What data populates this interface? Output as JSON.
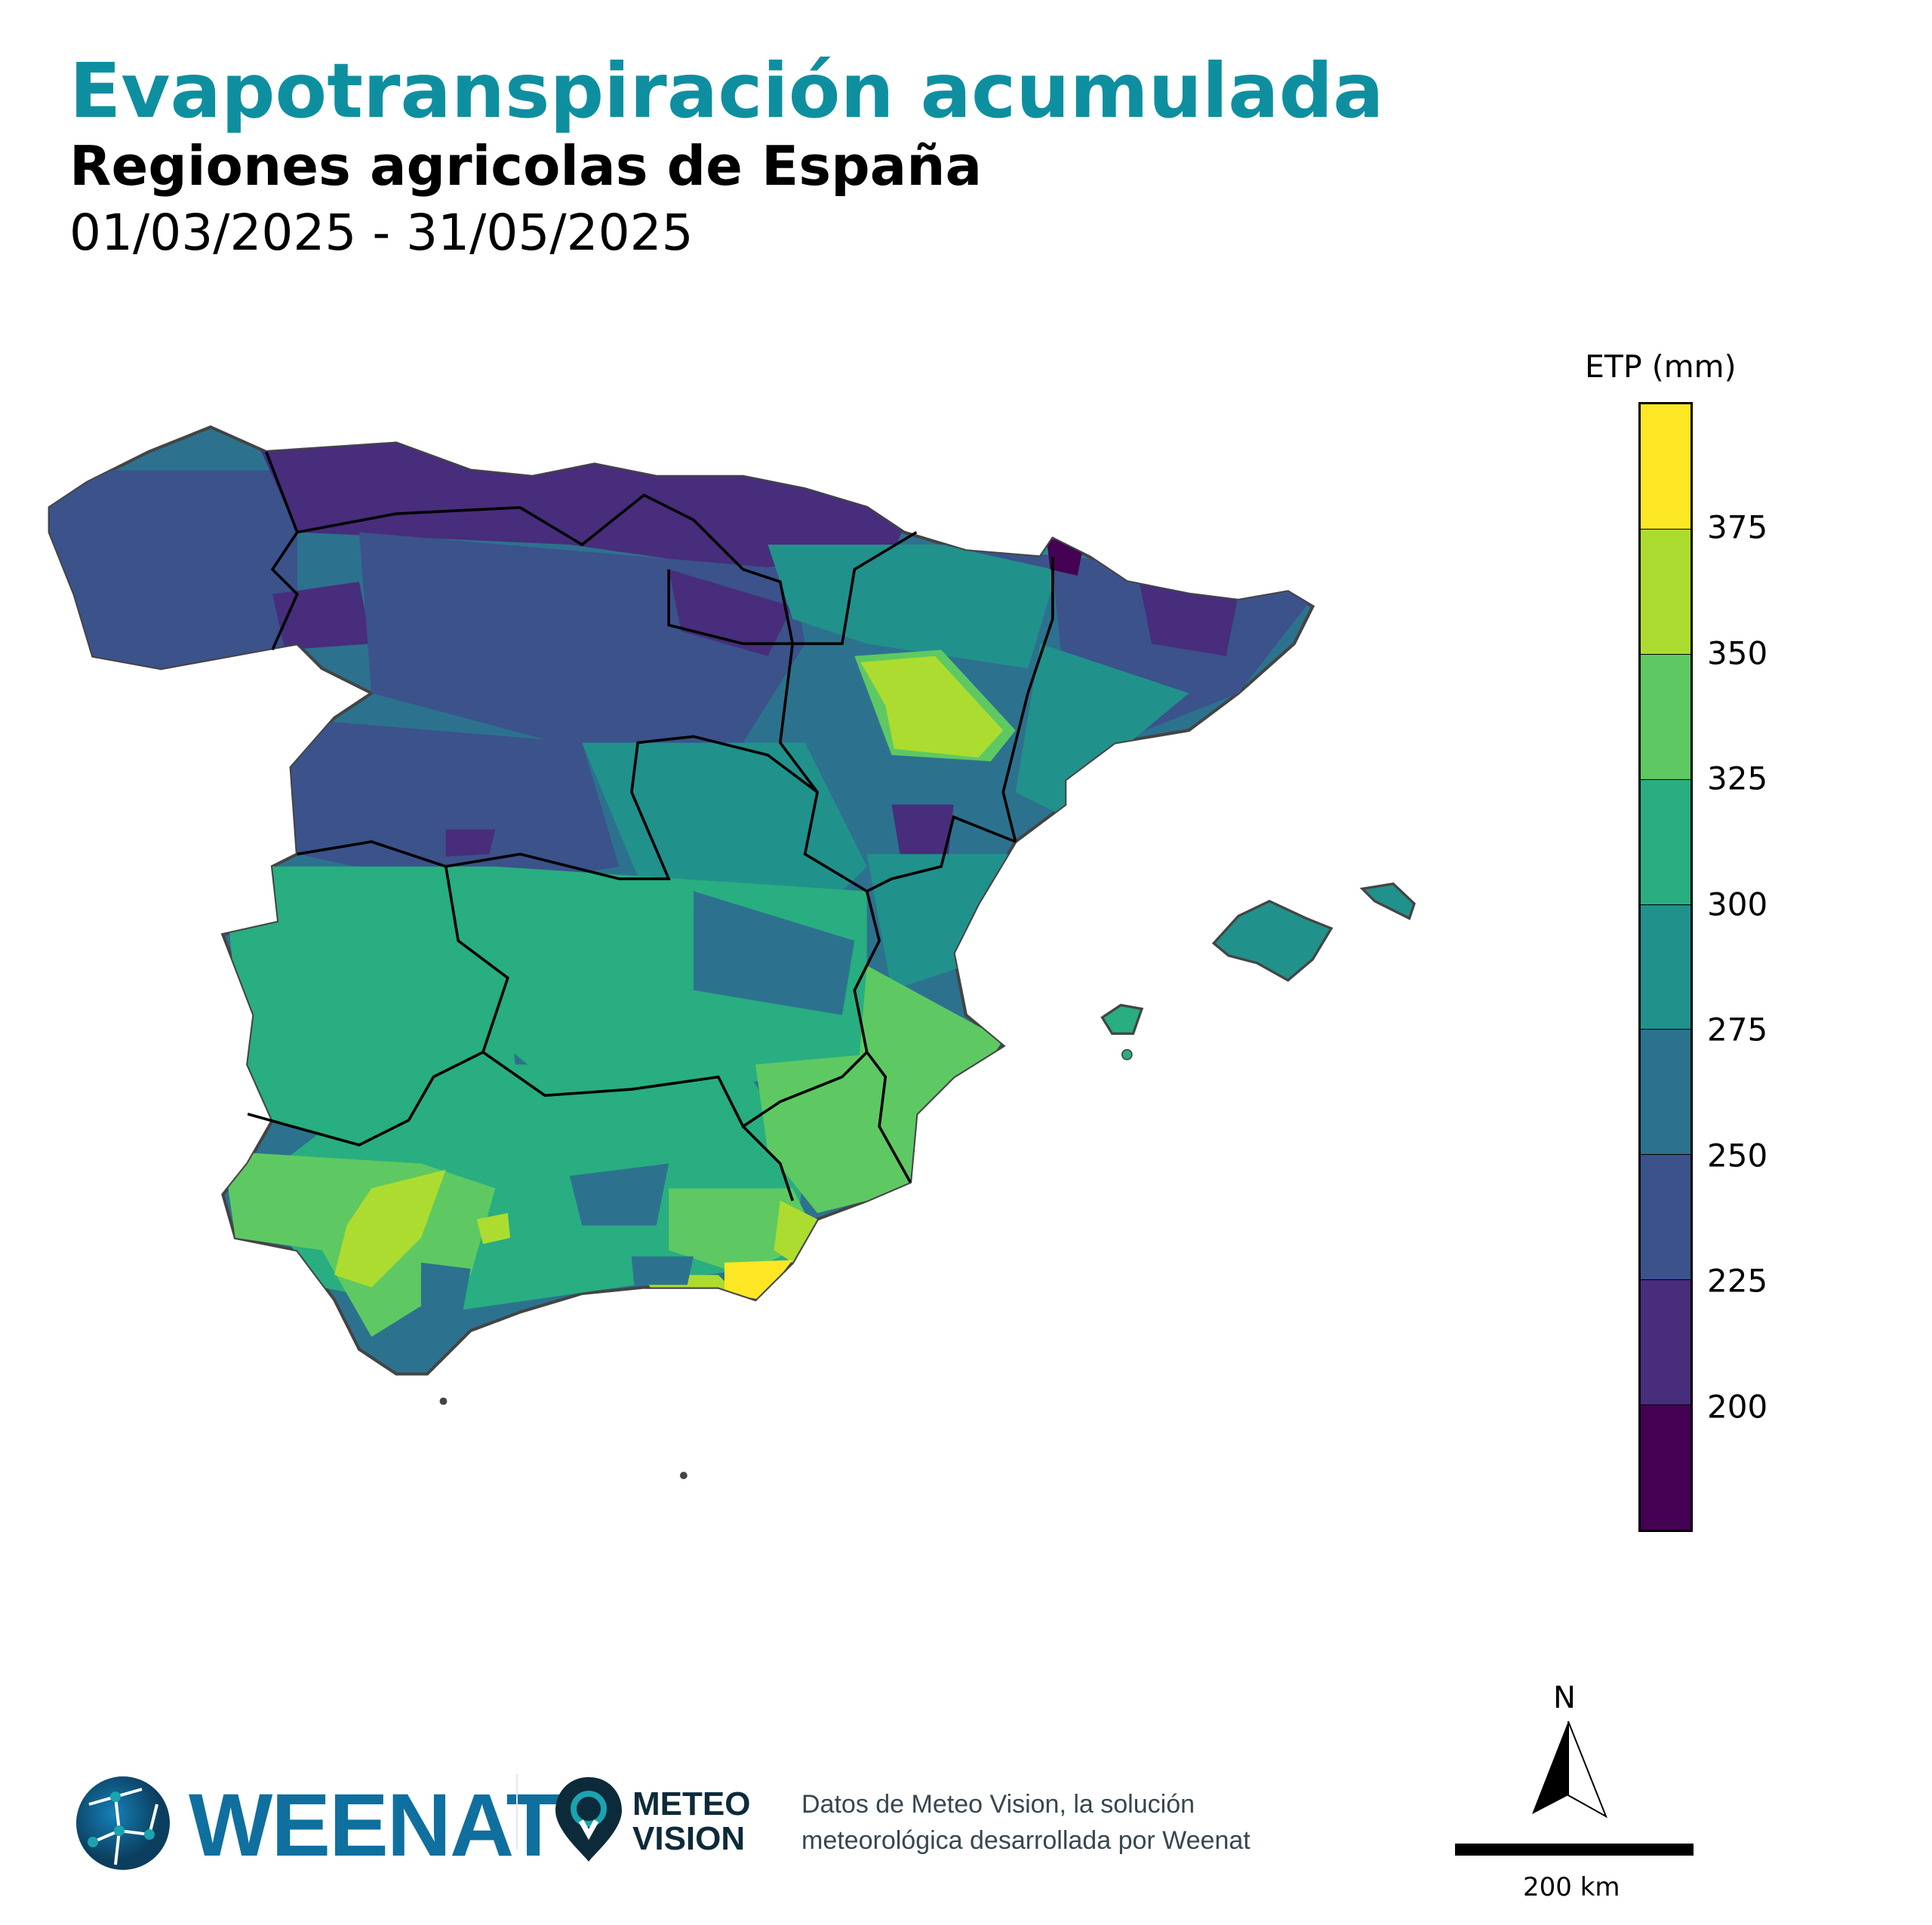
{
  "header": {
    "title": "Evapotranspiración acumulada",
    "subtitle": "Regiones agricolas de España",
    "date_range": "01/03/2025 - 31/05/2025"
  },
  "legend": {
    "title": "ETP (mm)",
    "ticks": [
      "375",
      "350",
      "325",
      "300",
      "275",
      "250",
      "225",
      "200"
    ],
    "tick_values": [
      375,
      350,
      325,
      300,
      275,
      250,
      225,
      200
    ],
    "colormap": "viridis",
    "bin_colors_top_to_bottom": [
      "#fde725",
      "#addc30",
      "#5ec962",
      "#28ae80",
      "#21918c",
      "#2c728e",
      "#3b528b",
      "#472d7b",
      "#440154"
    ]
  },
  "map": {
    "region": "Spain",
    "colors": {
      "border": "#000000",
      "coast": "#444444"
    }
  },
  "north_arrow": {
    "label": "N"
  },
  "scale_bar": {
    "label": "200 km"
  },
  "footer": {
    "weenat_logo": "WEENAT",
    "meteo_logo_line1": "METEO",
    "meteo_logo_line2": "VISION",
    "credit_line1": "Datos de Meteo Vision, la solución",
    "credit_line2": "meteorológica desarrollada por Weenat"
  }
}
